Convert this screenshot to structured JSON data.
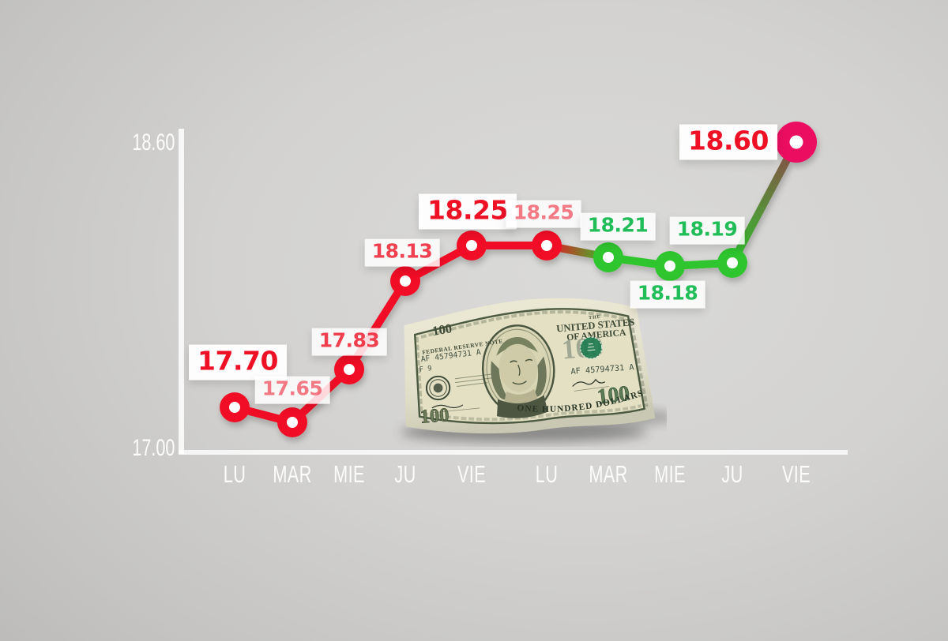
{
  "chart_data": {
    "type": "line",
    "categories": [
      "LU",
      "MAR",
      "MIE",
      "JU",
      "VIE",
      "LU",
      "MAR",
      "MIE",
      "JU",
      "VIE"
    ],
    "values": [
      17.7,
      17.65,
      17.83,
      18.13,
      18.25,
      18.25,
      18.21,
      18.18,
      18.19,
      18.6
    ],
    "point_labels": [
      "17.70",
      "17.65",
      "17.83",
      "18.13",
      "18.25",
      "18.25",
      "18.21",
      "18.18",
      "18.19",
      "18.60"
    ],
    "y_axis_ticks": [
      "18.60",
      "17.00"
    ],
    "ylim": [
      17.0,
      18.6
    ],
    "grid": false,
    "legend": false,
    "point_colors": [
      "red",
      "red",
      "red",
      "red",
      "red",
      "red",
      "green",
      "green",
      "green",
      "magenta"
    ],
    "label_colors": [
      "red",
      "red",
      "red",
      "red",
      "red",
      "red",
      "green",
      "green",
      "green",
      "red"
    ],
    "label_emphasis": [
      "big",
      "faded",
      "mid",
      "mid",
      "big",
      "faded",
      "normal",
      "normal",
      "normal",
      "big"
    ],
    "colors": {
      "red": "#f10c25",
      "green": "#2fc52d",
      "magenta": "#ea1060",
      "maroon": "#8e4549",
      "label_red": "#ee1126",
      "label_green": "#21bd58",
      "axis": "#ececec",
      "tick_text": "#fcfcfc"
    }
  },
  "bill": {
    "federal_reserve_note": "FEDERAL RESERVE NOTE",
    "the": "THE",
    "united_states": "UNITED STATES",
    "of_america": "OF AMERICA",
    "serial_left": "AF 45794731 A",
    "plate_left": "F 9",
    "serial_right": "AF 45794731 A",
    "watermark_100": "100",
    "corner_100_topleft": "100",
    "corner_100_bottomleft": "100",
    "corner_100_bottomright": "100",
    "denomination_text": "ONE HUNDRED DOLLARS"
  }
}
